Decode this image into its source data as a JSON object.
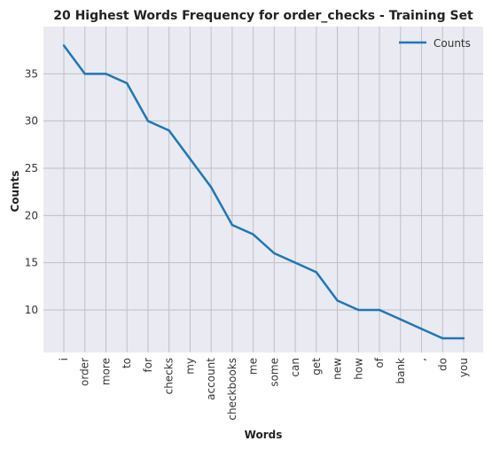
{
  "chart_data": {
    "type": "line",
    "title": "20 Highest Words Frequency for order_checks - Training Set",
    "xlabel": "Words",
    "ylabel": "Counts",
    "categories": [
      "i",
      "order",
      "more",
      "to",
      "for",
      "checks",
      "my",
      "account",
      "checkbooks",
      "me",
      "some",
      "can",
      "get",
      "new",
      "how",
      "of",
      "bank",
      ",",
      "do",
      "you"
    ],
    "series": [
      {
        "name": "Counts",
        "values": [
          38,
          35,
          35,
          34,
          30,
          29,
          26,
          23,
          19,
          18,
          16,
          15,
          14,
          11,
          10,
          10,
          9,
          8,
          7,
          7
        ]
      }
    ],
    "ylim": [
      5.5,
      40
    ],
    "yticks": [
      10,
      15,
      20,
      25,
      30,
      35
    ],
    "grid": true,
    "legend_position": "top-right",
    "colors": {
      "line": "#1f77b4",
      "plot_background": "#eaeaf2",
      "grid": "#bfbfc4"
    }
  }
}
